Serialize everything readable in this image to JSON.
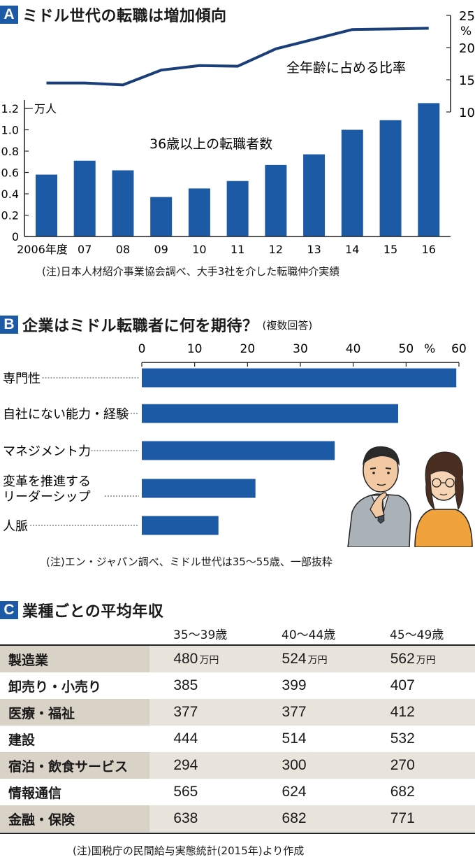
{
  "sectionA": {
    "badge": "A",
    "title": "ミドル世代の転職は増加傾向",
    "note": "(注)日本人材紹介事業協会調べ、大手3社を介した転職仲介実績"
  },
  "sectionB": {
    "badge": "B",
    "title": "企業はミドル転職者に何を期待？",
    "subtitle": "(複数回答)",
    "note": "(注)エン・ジャパン調べ、ミドル世代は35〜55歳、一部抜粋"
  },
  "sectionC": {
    "badge": "C",
    "title": "業種ごとの平均年収",
    "columns": [
      "35〜39歳",
      "40〜44歳",
      "45〜49歳"
    ],
    "unit": "万円",
    "rows": [
      {
        "label": "製造業",
        "values": [
          "480",
          "524",
          "562"
        ]
      },
      {
        "label": "卸売り・小売り",
        "values": [
          "385",
          "399",
          "407"
        ]
      },
      {
        "label": "医療・福祉",
        "values": [
          "377",
          "377",
          "412"
        ]
      },
      {
        "label": "建設",
        "values": [
          "444",
          "514",
          "532"
        ]
      },
      {
        "label": "宿泊・飲食サービス",
        "values": [
          "294",
          "300",
          "270"
        ]
      },
      {
        "label": "情報通信",
        "values": [
          "565",
          "624",
          "682"
        ]
      },
      {
        "label": "金融・保険",
        "values": [
          "638",
          "682",
          "771"
        ]
      }
    ],
    "note": "(注)国税庁の民間給与実態統計(2015年)より作成"
  },
  "colors": {
    "bar": "#1d5aa6",
    "line": "#1a3e78",
    "badge": "#1d5aa6",
    "shade": "#e8e3db"
  },
  "chart_data": [
    {
      "type": "bar",
      "title": "",
      "series": [
        {
          "name": "36歳以上の転職者数",
          "values": [
            0.58,
            0.71,
            0.62,
            0.37,
            0.45,
            0.52,
            0.67,
            0.77,
            1.0,
            1.09,
            1.25
          ]
        }
      ],
      "categories": [
        "2006年度",
        "07",
        "08",
        "09",
        "10",
        "11",
        "12",
        "13",
        "14",
        "15",
        "16"
      ],
      "ylabel": "万人",
      "ylim": [
        0,
        1.2
      ],
      "yticks": [
        "0",
        "0.2",
        "0.4",
        "0.6",
        "0.8",
        "1.0",
        "1.2"
      ]
    },
    {
      "type": "line",
      "series": [
        {
          "name": "全年齢に占める比率",
          "values": [
            14.5,
            14.5,
            14.2,
            16.5,
            17.2,
            17.1,
            19.8,
            21.3,
            22.8,
            22.9,
            23.0
          ]
        }
      ],
      "categories": [
        "2006年度",
        "07",
        "08",
        "09",
        "10",
        "11",
        "12",
        "13",
        "14",
        "15",
        "16"
      ],
      "ylabel": "%",
      "ylim": [
        10,
        25
      ],
      "yticks": [
        "10",
        "15",
        "20",
        "25"
      ]
    },
    {
      "type": "bar",
      "orientation": "horizontal",
      "categories": [
        "専門性",
        "自社にない能力・経験",
        "マネジメント力",
        "変革を推進するリーダーシップ",
        "人脈"
      ],
      "category_lines": [
        [
          "専門性"
        ],
        [
          "自社にない能力・経験"
        ],
        [
          "マネジメント力"
        ],
        [
          "変革を推進する",
          "リーダーシップ"
        ],
        [
          "人脈"
        ]
      ],
      "values": [
        59.5,
        48.5,
        36.5,
        21.5,
        14.5
      ],
      "xlim": [
        0,
        60
      ],
      "xticks": [
        "0",
        "10",
        "20",
        "30",
        "40",
        "50",
        "60"
      ],
      "xunit": "%"
    }
  ]
}
